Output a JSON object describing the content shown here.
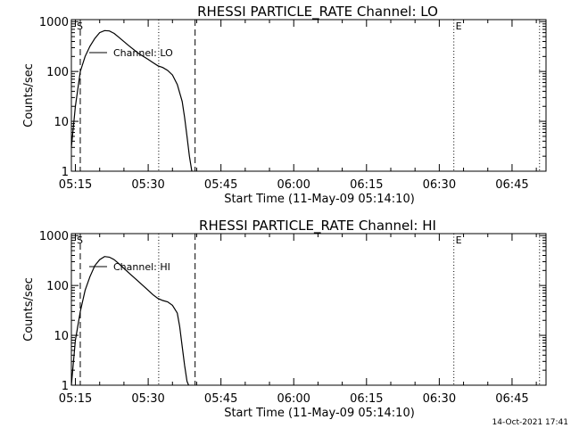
{
  "chart_data": [
    {
      "type": "line",
      "title": "RHESSI PARTICLE_RATE Channel: LO",
      "xlabel": "Start Time (11-May-09 05:14:10)",
      "ylabel": "Counts/sec",
      "yscale": "log",
      "ylim": [
        1,
        1000
      ],
      "xlim": [
        "05:14:10",
        "06:52:00"
      ],
      "x_tick_labels": [
        "05:15",
        "05:30",
        "05:45",
        "06:00",
        "06:15",
        "06:30",
        "06:45"
      ],
      "y_tick_labels": [
        "1",
        "10",
        "100",
        "1000"
      ],
      "y_ticks": [
        1,
        10,
        100,
        1000
      ],
      "legend_label": "Channel: LO",
      "markers": {
        "start": "S",
        "end": "E"
      },
      "vlines_dashed": [
        "05:16:00",
        "05:39:40"
      ],
      "vlines_dotted": [
        "05:32:10",
        "06:33:00",
        "06:50:40"
      ],
      "series": [
        {
          "x": [
            "05:14:10",
            "05:15:00",
            "05:16:00",
            "05:17:00",
            "05:18:00",
            "05:19:00",
            "05:20:00",
            "05:21:00",
            "05:22:00",
            "05:23:00",
            "05:24:00",
            "05:26:00",
            "05:28:00",
            "05:30:00",
            "05:31:00",
            "05:32:00",
            "05:33:00",
            "05:34:00",
            "05:35:00",
            "05:36:00",
            "05:37:00",
            "05:37:30",
            "05:38:00",
            "05:38:30",
            "05:39:00"
          ],
          "y": [
            3,
            20,
            100,
            200,
            320,
            460,
            600,
            660,
            650,
            580,
            480,
            330,
            230,
            175,
            150,
            130,
            120,
            105,
            85,
            55,
            25,
            12,
            5,
            2,
            1
          ]
        }
      ]
    },
    {
      "type": "line",
      "title": "RHESSI PARTICLE_RATE Channel: HI",
      "xlabel": "Start Time (11-May-09 05:14:10)",
      "ylabel": "Counts/sec",
      "yscale": "log",
      "ylim": [
        1,
        1000
      ],
      "xlim": [
        "05:14:10",
        "06:52:00"
      ],
      "x_tick_labels": [
        "05:15",
        "05:30",
        "05:45",
        "06:00",
        "06:15",
        "06:30",
        "06:45"
      ],
      "y_tick_labels": [
        "1",
        "10",
        "100",
        "1000"
      ],
      "y_ticks": [
        1,
        10,
        100,
        1000
      ],
      "legend_label": "Channel: HI",
      "markers": {
        "start": "S",
        "end": "E"
      },
      "vlines_dashed": [
        "05:16:00",
        "05:39:40"
      ],
      "vlines_dotted": [
        "05:32:10",
        "06:33:00",
        "06:50:40"
      ],
      "series": [
        {
          "x": [
            "05:14:10",
            "05:15:00",
            "05:16:00",
            "05:17:00",
            "05:18:00",
            "05:19:00",
            "05:20:00",
            "05:21:00",
            "05:22:00",
            "05:23:00",
            "05:24:00",
            "05:26:00",
            "05:28:00",
            "05:30:00",
            "05:31:00",
            "05:32:00",
            "05:33:00",
            "05:34:00",
            "05:35:00",
            "05:36:00",
            "05:36:30",
            "05:37:00",
            "05:37:30",
            "05:38:00",
            "05:38:20"
          ],
          "y": [
            1,
            8,
            30,
            80,
            150,
            250,
            330,
            380,
            370,
            330,
            270,
            180,
            120,
            80,
            65,
            55,
            50,
            47,
            40,
            28,
            15,
            6,
            2.5,
            1.2,
            1
          ]
        }
      ]
    }
  ],
  "footer": {
    "timestamp": "14-Oct-2021 17:41"
  },
  "colors": {
    "background": "#ffffff",
    "foreground": "#000000"
  }
}
